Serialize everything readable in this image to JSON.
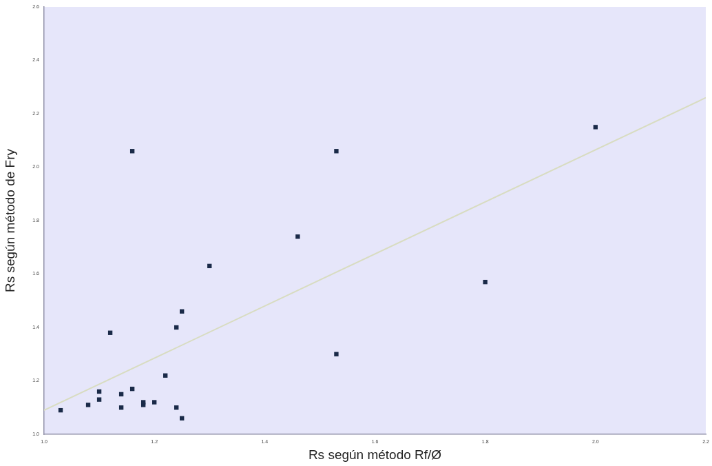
{
  "chart_data": {
    "type": "scatter",
    "xlabel": "Rs según método Rf/Ø",
    "ylabel": "Rs según método de Fry",
    "xlim": [
      1.0,
      2.2
    ],
    "xticks": [
      {
        "value": 1.0,
        "label": "1.0"
      },
      {
        "value": 1.2,
        "label": "1.2"
      },
      {
        "value": 1.4,
        "label": "1.4"
      },
      {
        "value": 1.6,
        "label": "1.6"
      },
      {
        "value": 1.8,
        "label": "1.8"
      },
      {
        "value": 2.0,
        "label": "2.0"
      },
      {
        "value": 2.2,
        "label": "2.2"
      }
    ],
    "ylim": [
      1.0,
      2.6
    ],
    "yticks": [
      {
        "value": 1.0,
        "label": "1.0"
      },
      {
        "value": 1.2,
        "label": "1.2"
      },
      {
        "value": 1.4,
        "label": "1.4"
      },
      {
        "value": 1.6,
        "label": "1.6"
      },
      {
        "value": 1.8,
        "label": "1.8"
      },
      {
        "value": 2.0,
        "label": "2.0"
      },
      {
        "value": 2.2,
        "label": "2.2"
      },
      {
        "value": 2.4,
        "label": "2.4"
      },
      {
        "value": 2.6,
        "label": "2.6"
      }
    ],
    "grid": false,
    "legend": false,
    "marker": "square",
    "series": [
      {
        "type": "scatter",
        "color": "#1a2a48",
        "x": [
          1.03,
          1.08,
          1.1,
          1.1,
          1.12,
          1.14,
          1.14,
          1.16,
          1.16,
          1.18,
          1.18,
          1.2,
          1.22,
          1.24,
          1.24,
          1.25,
          1.25,
          1.3,
          1.46,
          1.53,
          1.53,
          1.8,
          2.0
        ],
        "values": [
          1.09,
          1.11,
          1.16,
          1.13,
          1.38,
          1.15,
          1.1,
          1.17,
          2.06,
          1.11,
          1.12,
          1.12,
          1.22,
          1.1,
          1.4,
          1.06,
          1.46,
          1.63,
          1.74,
          2.06,
          1.3,
          1.57,
          2.15
        ]
      },
      {
        "type": "line",
        "color": "#d8dcc0",
        "marker": "none",
        "x": [
          1.0,
          2.2
        ],
        "values": [
          1.09,
          2.26
        ]
      }
    ]
  }
}
